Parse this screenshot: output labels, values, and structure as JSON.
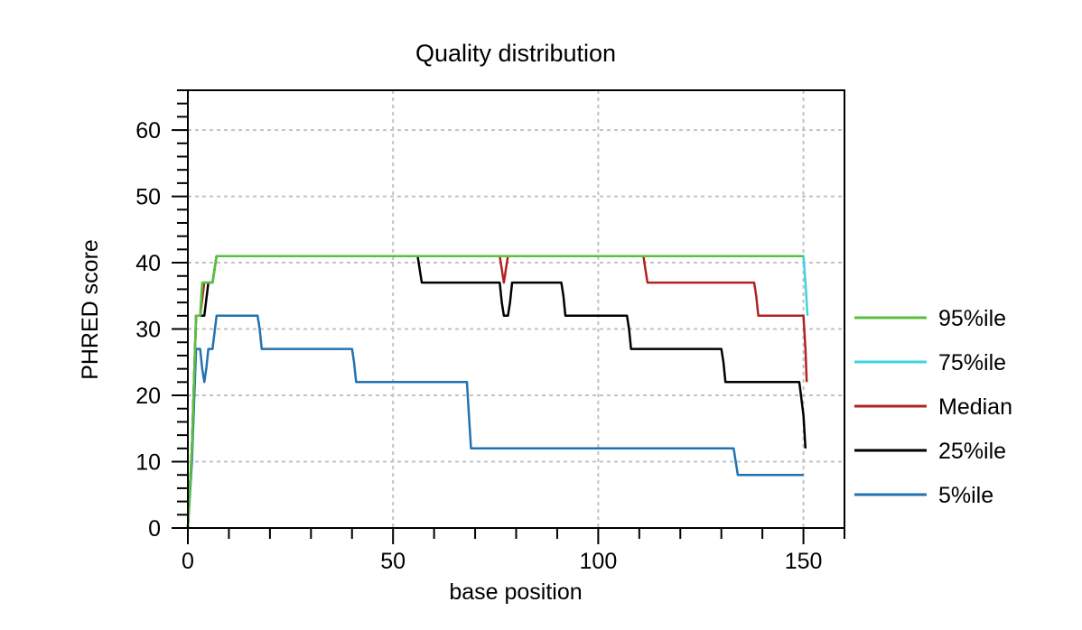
{
  "chart_data": {
    "type": "line",
    "title": "Quality distribution",
    "xlabel": "base position",
    "ylabel": "PHRED score",
    "xlim": [
      0,
      160
    ],
    "ylim": [
      0,
      66
    ],
    "x_ticks": [
      0,
      50,
      100,
      150
    ],
    "y_ticks": [
      0,
      10,
      20,
      30,
      40,
      50,
      60
    ],
    "grid": true,
    "legend_position": "right",
    "series": [
      {
        "name": "5%ile",
        "color": "#2172b0",
        "points": [
          [
            0,
            0
          ],
          [
            1,
            10
          ],
          [
            2,
            27
          ],
          [
            3,
            27
          ],
          [
            3.5,
            24
          ],
          [
            4,
            22
          ],
          [
            4.5,
            24
          ],
          [
            5,
            27
          ],
          [
            6,
            27
          ],
          [
            7,
            32
          ],
          [
            17,
            32
          ],
          [
            17.5,
            30
          ],
          [
            18,
            27
          ],
          [
            40,
            27
          ],
          [
            40.5,
            25
          ],
          [
            41,
            22
          ],
          [
            68,
            22
          ],
          [
            68.5,
            17
          ],
          [
            69,
            12
          ],
          [
            133,
            12
          ],
          [
            133.5,
            10
          ],
          [
            134,
            8
          ],
          [
            150,
            8
          ]
        ]
      },
      {
        "name": "25%ile",
        "color": "#000000",
        "points": [
          [
            0,
            0
          ],
          [
            1,
            12
          ],
          [
            2,
            32
          ],
          [
            3,
            32
          ],
          [
            4,
            32
          ],
          [
            5,
            37
          ],
          [
            6,
            37
          ],
          [
            7,
            41
          ],
          [
            56,
            41
          ],
          [
            56.5,
            39
          ],
          [
            57,
            37
          ],
          [
            76,
            37
          ],
          [
            76.5,
            34
          ],
          [
            77,
            32
          ],
          [
            78,
            32
          ],
          [
            78.5,
            34
          ],
          [
            79,
            37
          ],
          [
            91,
            37
          ],
          [
            91.5,
            35
          ],
          [
            92,
            32
          ],
          [
            107,
            32
          ],
          [
            107.5,
            30
          ],
          [
            108,
            27
          ],
          [
            130,
            27
          ],
          [
            130.5,
            25
          ],
          [
            131,
            22
          ],
          [
            149,
            22
          ],
          [
            150,
            17
          ],
          [
            150.5,
            12
          ]
        ]
      },
      {
        "name": "Median",
        "color": "#b22222",
        "points": [
          [
            0,
            0
          ],
          [
            1,
            12
          ],
          [
            2,
            32
          ],
          [
            3,
            32
          ],
          [
            4,
            37
          ],
          [
            5,
            37
          ],
          [
            6,
            37
          ],
          [
            7,
            41
          ],
          [
            76,
            41
          ],
          [
            76.5,
            39
          ],
          [
            77,
            37
          ],
          [
            77.5,
            39
          ],
          [
            78,
            41
          ],
          [
            111,
            41
          ],
          [
            111.5,
            39
          ],
          [
            112,
            37
          ],
          [
            138,
            37
          ],
          [
            138.5,
            35
          ],
          [
            139,
            32
          ],
          [
            150,
            32
          ],
          [
            150.5,
            27
          ],
          [
            150.8,
            22
          ]
        ]
      },
      {
        "name": "75%ile",
        "color": "#3dd3e3",
        "points": [
          [
            0,
            0
          ],
          [
            1,
            12
          ],
          [
            2,
            32
          ],
          [
            3,
            32
          ],
          [
            3.5,
            37
          ],
          [
            5,
            37
          ],
          [
            6,
            37
          ],
          [
            7,
            41
          ],
          [
            150,
            41
          ],
          [
            150.5,
            37
          ],
          [
            151,
            32
          ]
        ]
      },
      {
        "name": "95%ile",
        "color": "#5cbf3c",
        "points": [
          [
            0,
            0
          ],
          [
            1,
            12
          ],
          [
            2,
            32
          ],
          [
            3,
            32
          ],
          [
            3.5,
            37
          ],
          [
            5,
            37
          ],
          [
            6,
            37
          ],
          [
            7,
            41
          ],
          [
            150,
            41
          ]
        ]
      }
    ],
    "legend_order": [
      "95%ile",
      "75%ile",
      "Median",
      "25%ile",
      "5%ile"
    ]
  }
}
